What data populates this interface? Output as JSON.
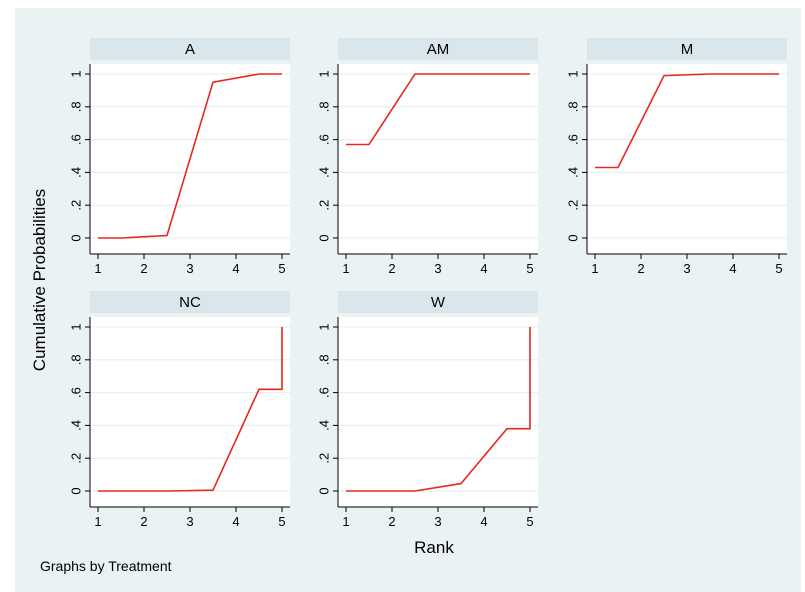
{
  "figure": {
    "ylabel": "Cumulative Probabilities",
    "xlabel": "Rank",
    "note": "Graphs by Treatment",
    "line_color": "#e8271e",
    "panel_header_color": "#d9e6eb",
    "background_color": "#eaf2f3"
  },
  "chart_data": [
    {
      "type": "line",
      "title": "A",
      "x": [
        1,
        1.5,
        2.5,
        3.5,
        4.5,
        5
      ],
      "y": [
        0,
        0,
        0.015,
        0.95,
        1,
        1
      ],
      "xlim": [
        1,
        5
      ],
      "ylim": [
        0,
        1
      ],
      "xticks": [
        "1",
        "2",
        "3",
        "4",
        "5"
      ],
      "yticks": [
        "0",
        ".2",
        ".4",
        ".6",
        ".8",
        "1"
      ],
      "grid": true
    },
    {
      "type": "line",
      "title": "AM",
      "x": [
        1,
        1.5,
        2.5,
        3.5,
        4.5,
        5
      ],
      "y": [
        0.57,
        0.57,
        1,
        1,
        1,
        1
      ],
      "xlim": [
        1,
        5
      ],
      "ylim": [
        0,
        1
      ],
      "xticks": [
        "1",
        "2",
        "3",
        "4",
        "5"
      ],
      "yticks": [
        "0",
        ".2",
        ".4",
        ".6",
        ".8",
        "1"
      ],
      "grid": true
    },
    {
      "type": "line",
      "title": "M",
      "x": [
        1,
        1.5,
        2.5,
        3.5,
        4.5,
        5
      ],
      "y": [
        0.43,
        0.43,
        0.99,
        1,
        1,
        1
      ],
      "xlim": [
        1,
        5
      ],
      "ylim": [
        0,
        1
      ],
      "xticks": [
        "1",
        "2",
        "3",
        "4",
        "5"
      ],
      "yticks": [
        "0",
        ".2",
        ".4",
        ".6",
        ".8",
        "1"
      ],
      "grid": true
    },
    {
      "type": "line",
      "title": "NC",
      "x": [
        1,
        1.5,
        2.5,
        3.5,
        4.5,
        5,
        5
      ],
      "y": [
        0,
        0,
        0,
        0.005,
        0.62,
        0.62,
        1
      ],
      "xlim": [
        1,
        5
      ],
      "ylim": [
        0,
        1
      ],
      "xticks": [
        "1",
        "2",
        "3",
        "4",
        "5"
      ],
      "yticks": [
        "0",
        ".2",
        ".4",
        ".6",
        ".8",
        "1"
      ],
      "grid": true
    },
    {
      "type": "line",
      "title": "W",
      "x": [
        1,
        1.5,
        2.5,
        3.5,
        4.5,
        5,
        5
      ],
      "y": [
        0,
        0,
        0,
        0.045,
        0.38,
        0.38,
        1
      ],
      "xlim": [
        1,
        5
      ],
      "ylim": [
        0,
        1
      ],
      "xticks": [
        "1",
        "2",
        "3",
        "4",
        "5"
      ],
      "yticks": [
        "0",
        ".2",
        ".4",
        ".6",
        ".8",
        "1"
      ],
      "grid": true
    }
  ]
}
